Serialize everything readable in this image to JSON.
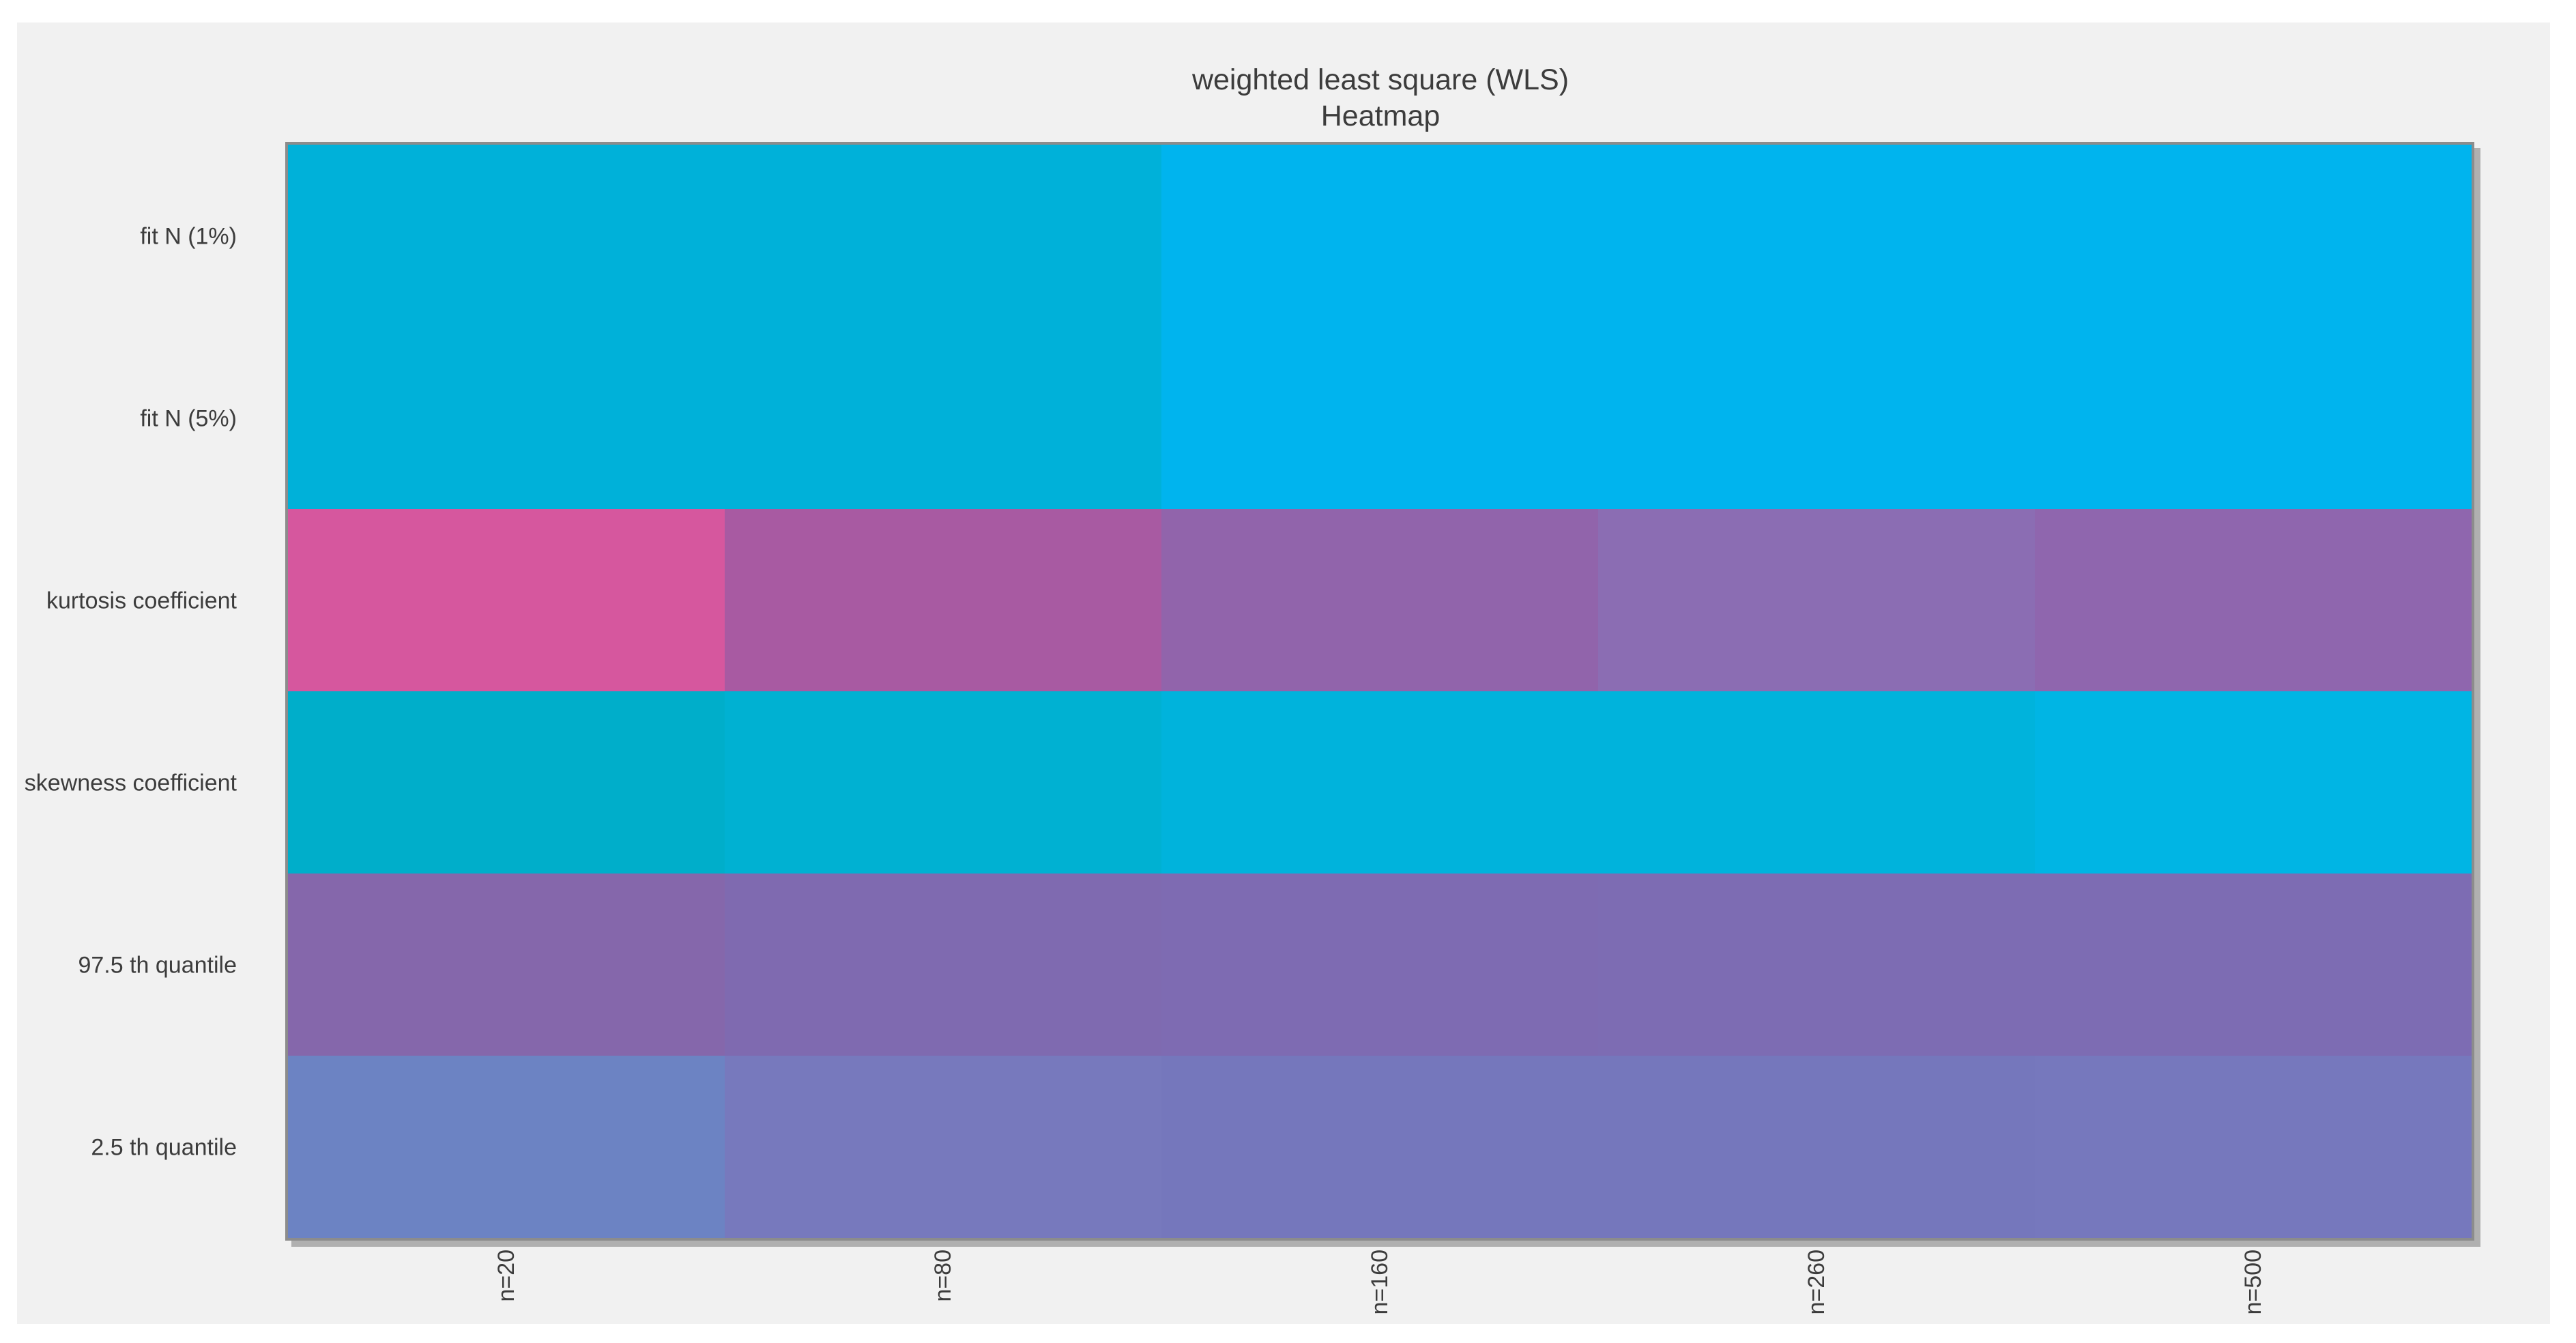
{
  "page": {
    "background_color": "#ffffff",
    "figure_background_color": "#f1f1f1",
    "plot_border_color": "#8c8c8c",
    "text_color": "#3c3c3c"
  },
  "title": {
    "line1": "weighted least square (WLS)",
    "line2": "Heatmap"
  },
  "chart_data": {
    "type": "heatmap",
    "title": "weighted least square (WLS)",
    "subtitle": "Heatmap",
    "rows": [
      "fit N (1%)",
      "fit N (5%)",
      "kurtosis coefficient",
      "skewness coefficient",
      "97.5 th quantile",
      "2.5 th quantile"
    ],
    "columns": [
      "n=20",
      "n=80",
      "n=160",
      "n=260",
      "n=500"
    ],
    "x_tick_rotation_degrees": 90,
    "grid": false,
    "colorbar": false,
    "value_annotations": false,
    "cell_colors": [
      [
        "#00b1d9",
        "#00b1d9",
        "#00b4ee",
        "#00b4ee",
        "#00b4ee"
      ],
      [
        "#00b1d9",
        "#00b1d9",
        "#00b4ee",
        "#00b4ee",
        "#00b4ee"
      ],
      [
        "#d6579e",
        "#a85aa2",
        "#9164ab",
        "#8b6db3",
        "#8f66ae"
      ],
      [
        "#00aeca",
        "#00b1d2",
        "#00b3dc",
        "#00b3dc",
        "#00b5e4"
      ],
      [
        "#8567ab",
        "#7f6ab0",
        "#7e6bb2",
        "#7d6cb3",
        "#7d6cb3"
      ],
      [
        "#6c83c3",
        "#7779bd",
        "#7577bc",
        "#7577bc",
        "#7678bd"
      ]
    ]
  }
}
